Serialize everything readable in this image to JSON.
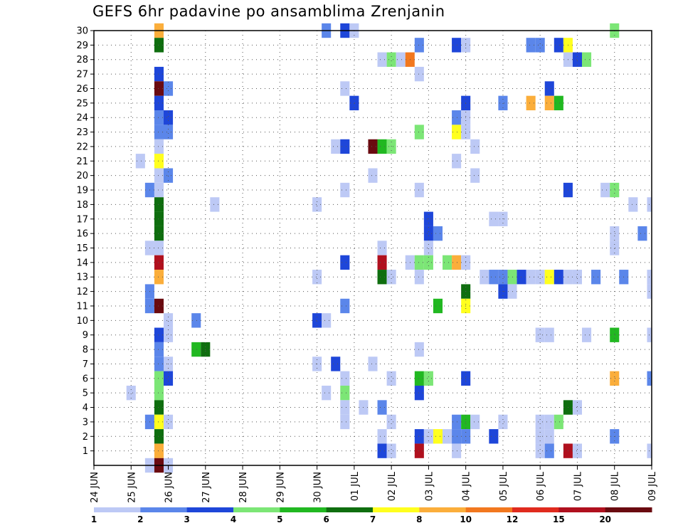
{
  "chart_data": {
    "type": "heatmap",
    "title": "GEFS 6hr padavine po ansamblima Zrenjanin",
    "xlabel": "",
    "ylabel": "",
    "x_ticks": [
      "24 JUN",
      "25 JUN",
      "26 JUN",
      "27 JUN",
      "28 JUN",
      "29 JUN",
      "30 JUN",
      "01 JUL",
      "02 JUL",
      "03 JUL",
      "04 JUL",
      "05 JUL",
      "06 JUL",
      "07 JUL",
      "08 JUL",
      "09 JUL"
    ],
    "y_ticks": [
      1,
      2,
      3,
      4,
      5,
      6,
      7,
      8,
      9,
      10,
      11,
      12,
      13,
      14,
      15,
      16,
      17,
      18,
      19,
      20,
      21,
      22,
      23,
      24,
      25,
      26,
      27,
      28,
      29,
      30
    ],
    "xlim_steps": [
      0,
      60
    ],
    "steps_per_day": 4,
    "ylim": [
      0,
      30
    ],
    "grid": true,
    "legend_placement": "bottom",
    "levels": [
      {
        "label": "1",
        "color": "#bdc9f5"
      },
      {
        "label": "2",
        "color": "#5b86ea"
      },
      {
        "label": "3",
        "color": "#1e46d9"
      },
      {
        "label": "4",
        "color": "#7ce676"
      },
      {
        "label": "5",
        "color": "#21b821"
      },
      {
        "label": "6",
        "color": "#0f6e0f"
      },
      {
        "label": "7",
        "color": "#ffff1e"
      },
      {
        "label": "8",
        "color": "#fbae3b"
      },
      {
        "label": "10",
        "color": "#f2781f"
      },
      {
        "label": "12",
        "color": "#e02b1e"
      },
      {
        "label": "15",
        "color": "#b0101e"
      },
      {
        "label": "20",
        "color": "#6a0a10"
      }
    ],
    "cells": [
      [
        7,
        30,
        7
      ],
      [
        25,
        30,
        1
      ],
      [
        27,
        30,
        2
      ],
      [
        28,
        30,
        0
      ],
      [
        56,
        30,
        3
      ],
      [
        7,
        29,
        5
      ],
      [
        35,
        29,
        1
      ],
      [
        39,
        29,
        2
      ],
      [
        40,
        29,
        0
      ],
      [
        47,
        29,
        1
      ],
      [
        48,
        29,
        1
      ],
      [
        50,
        29,
        2
      ],
      [
        51,
        29,
        6
      ],
      [
        31,
        28,
        0
      ],
      [
        32,
        28,
        3
      ],
      [
        33,
        28,
        0
      ],
      [
        34,
        28,
        8
      ],
      [
        51,
        28,
        0
      ],
      [
        52,
        28,
        2
      ],
      [
        53,
        28,
        3
      ],
      [
        7,
        27,
        2
      ],
      [
        35,
        27,
        0
      ],
      [
        7,
        26,
        11
      ],
      [
        8,
        26,
        1
      ],
      [
        27,
        26,
        0
      ],
      [
        49,
        26,
        2
      ],
      [
        7,
        25,
        2
      ],
      [
        28,
        25,
        2
      ],
      [
        40,
        25,
        2
      ],
      [
        44,
        25,
        1
      ],
      [
        47,
        25,
        7
      ],
      [
        49,
        25,
        7
      ],
      [
        50,
        25,
        4
      ],
      [
        7,
        24,
        1
      ],
      [
        8,
        24,
        2
      ],
      [
        39,
        24,
        1
      ],
      [
        40,
        24,
        0
      ],
      [
        7,
        23,
        1
      ],
      [
        8,
        23,
        1
      ],
      [
        35,
        23,
        3
      ],
      [
        39,
        23,
        6
      ],
      [
        40,
        23,
        0
      ],
      [
        7,
        22,
        0
      ],
      [
        26,
        22,
        0
      ],
      [
        27,
        22,
        2
      ],
      [
        30,
        22,
        11
      ],
      [
        31,
        22,
        4
      ],
      [
        32,
        22,
        3
      ],
      [
        41,
        22,
        0
      ],
      [
        5,
        21,
        0
      ],
      [
        7,
        21,
        6
      ],
      [
        39,
        21,
        0
      ],
      [
        7,
        20,
        0
      ],
      [
        8,
        20,
        1
      ],
      [
        30,
        20,
        0
      ],
      [
        41,
        20,
        0
      ],
      [
        6,
        19,
        1
      ],
      [
        7,
        19,
        0
      ],
      [
        27,
        19,
        0
      ],
      [
        35,
        19,
        0
      ],
      [
        51,
        19,
        2
      ],
      [
        55,
        19,
        0
      ],
      [
        56,
        19,
        3
      ],
      [
        7,
        18,
        5
      ],
      [
        13,
        18,
        0
      ],
      [
        24,
        18,
        0
      ],
      [
        58,
        18,
        0
      ],
      [
        60,
        18,
        0
      ],
      [
        7,
        17,
        5
      ],
      [
        36,
        17,
        2
      ],
      [
        43,
        17,
        0
      ],
      [
        44,
        17,
        0
      ],
      [
        7,
        16,
        5
      ],
      [
        36,
        16,
        2
      ],
      [
        37,
        16,
        1
      ],
      [
        56,
        16,
        0
      ],
      [
        59,
        16,
        1
      ],
      [
        6,
        15,
        0
      ],
      [
        7,
        15,
        0
      ],
      [
        31,
        15,
        0
      ],
      [
        36,
        15,
        0
      ],
      [
        56,
        15,
        0
      ],
      [
        7,
        14,
        10
      ],
      [
        27,
        14,
        2
      ],
      [
        31,
        14,
        10
      ],
      [
        34,
        14,
        0
      ],
      [
        35,
        14,
        3
      ],
      [
        36,
        14,
        3
      ],
      [
        38,
        14,
        3
      ],
      [
        39,
        14,
        7
      ],
      [
        40,
        14,
        0
      ],
      [
        7,
        13,
        7
      ],
      [
        24,
        13,
        0
      ],
      [
        31,
        13,
        5
      ],
      [
        32,
        13,
        0
      ],
      [
        35,
        13,
        0
      ],
      [
        42,
        13,
        0
      ],
      [
        43,
        13,
        1
      ],
      [
        44,
        13,
        1
      ],
      [
        45,
        13,
        3
      ],
      [
        46,
        13,
        2
      ],
      [
        47,
        13,
        0
      ],
      [
        48,
        13,
        0
      ],
      [
        49,
        13,
        6
      ],
      [
        50,
        13,
        2
      ],
      [
        51,
        13,
        0
      ],
      [
        52,
        13,
        0
      ],
      [
        54,
        13,
        1
      ],
      [
        57,
        13,
        1
      ],
      [
        60,
        13,
        0
      ],
      [
        6,
        12,
        1
      ],
      [
        40,
        12,
        5
      ],
      [
        44,
        12,
        2
      ],
      [
        45,
        12,
        0
      ],
      [
        60,
        12,
        0
      ],
      [
        6,
        11,
        1
      ],
      [
        7,
        11,
        11
      ],
      [
        27,
        11,
        1
      ],
      [
        37,
        11,
        4
      ],
      [
        40,
        11,
        6
      ],
      [
        8,
        10,
        0
      ],
      [
        11,
        10,
        1
      ],
      [
        24,
        10,
        2
      ],
      [
        25,
        10,
        0
      ],
      [
        7,
        9,
        2
      ],
      [
        8,
        9,
        0
      ],
      [
        48,
        9,
        0
      ],
      [
        49,
        9,
        0
      ],
      [
        53,
        9,
        0
      ],
      [
        56,
        9,
        4
      ],
      [
        60,
        9,
        0
      ],
      [
        7,
        8,
        1
      ],
      [
        11,
        8,
        4
      ],
      [
        12,
        8,
        5
      ],
      [
        35,
        8,
        0
      ],
      [
        7,
        7,
        1
      ],
      [
        8,
        7,
        0
      ],
      [
        24,
        7,
        0
      ],
      [
        26,
        7,
        2
      ],
      [
        30,
        7,
        0
      ],
      [
        7,
        6,
        3
      ],
      [
        8,
        6,
        2
      ],
      [
        27,
        6,
        0
      ],
      [
        32,
        6,
        0
      ],
      [
        35,
        6,
        4
      ],
      [
        36,
        6,
        3
      ],
      [
        40,
        6,
        2
      ],
      [
        56,
        6,
        7
      ],
      [
        60,
        6,
        1
      ],
      [
        4,
        5,
        0
      ],
      [
        7,
        5,
        3
      ],
      [
        25,
        5,
        0
      ],
      [
        27,
        5,
        3
      ],
      [
        35,
        5,
        2
      ],
      [
        7,
        4,
        5
      ],
      [
        27,
        4,
        0
      ],
      [
        29,
        4,
        0
      ],
      [
        31,
        4,
        1
      ],
      [
        51,
        4,
        5
      ],
      [
        52,
        4,
        0
      ],
      [
        6,
        3,
        1
      ],
      [
        7,
        3,
        6
      ],
      [
        8,
        3,
        0
      ],
      [
        27,
        3,
        0
      ],
      [
        32,
        3,
        0
      ],
      [
        39,
        3,
        1
      ],
      [
        40,
        3,
        4
      ],
      [
        41,
        3,
        0
      ],
      [
        44,
        3,
        0
      ],
      [
        48,
        3,
        0
      ],
      [
        49,
        3,
        0
      ],
      [
        50,
        3,
        3
      ],
      [
        7,
        2,
        5
      ],
      [
        31,
        2,
        0
      ],
      [
        35,
        2,
        2
      ],
      [
        36,
        2,
        0
      ],
      [
        37,
        2,
        6
      ],
      [
        38,
        2,
        0
      ],
      [
        39,
        2,
        1
      ],
      [
        40,
        2,
        1
      ],
      [
        43,
        2,
        2
      ],
      [
        48,
        2,
        0
      ],
      [
        49,
        2,
        0
      ],
      [
        56,
        2,
        1
      ],
      [
        7,
        1,
        7
      ],
      [
        31,
        1,
        2
      ],
      [
        32,
        1,
        0
      ],
      [
        35,
        1,
        10
      ],
      [
        39,
        1,
        0
      ],
      [
        48,
        1,
        0
      ],
      [
        49,
        1,
        1
      ],
      [
        51,
        1,
        10
      ],
      [
        52,
        1,
        0
      ],
      [
        60,
        1,
        0
      ],
      [
        6,
        0,
        0
      ],
      [
        7,
        0,
        11
      ],
      [
        8,
        0,
        0
      ]
    ]
  }
}
